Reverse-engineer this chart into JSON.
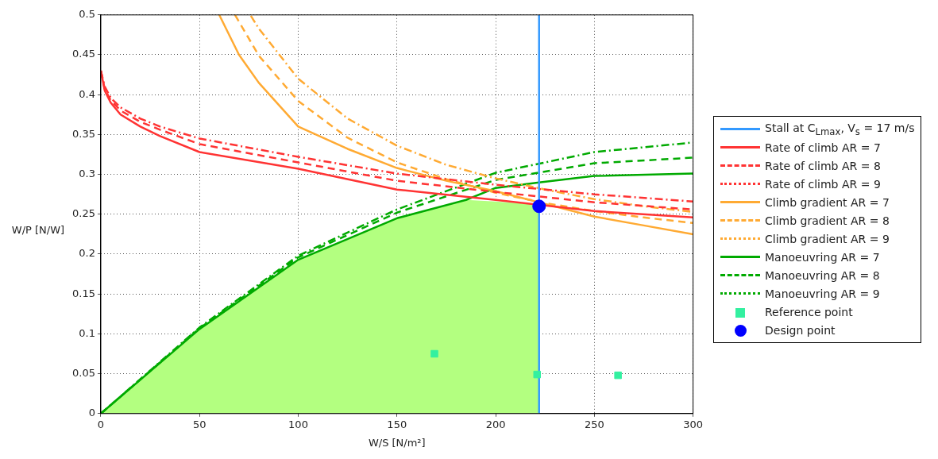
{
  "chart_data": {
    "type": "line",
    "xlabel": "W/S [N/m²]",
    "ylabel": "W/P [N/W]",
    "xlim": [
      0,
      300
    ],
    "ylim": [
      0,
      0.5
    ],
    "xticks": [
      0,
      50,
      100,
      150,
      200,
      250,
      300
    ],
    "yticks": [
      0,
      0.05,
      0.1,
      0.15,
      0.2,
      0.25,
      0.3,
      0.35,
      0.4,
      0.45,
      0.5
    ],
    "grid": true,
    "legend": "right",
    "marker": "none",
    "series": [
      {
        "type": "area",
        "color": "#b3ff80",
        "x": [
          0,
          50,
          100,
          150,
          185,
          200,
          222
        ],
        "values": [
          0,
          0.106,
          0.193,
          0.245,
          0.268,
          0.266,
          0.262
        ]
      },
      {
        "name": "Stall at C$_{Lmax}$, V$_{s}$ = 17 m/s",
        "color": "#3399ff",
        "line_style": "solid",
        "x": [
          222,
          222
        ],
        "values": [
          0,
          0.5
        ]
      },
      {
        "name": "Rate of climb AR = 7",
        "color": "#ff3333",
        "line_style": "solid",
        "x": [
          0,
          2,
          5,
          10,
          20,
          30,
          50,
          100,
          150,
          200,
          250,
          300
        ],
        "values": [
          0.43,
          0.405,
          0.39,
          0.375,
          0.36,
          0.348,
          0.328,
          0.307,
          0.281,
          0.268,
          0.254,
          0.246
        ]
      },
      {
        "name": "Rate of climb AR = 8",
        "color": "#ff3333",
        "line_style": "dashed",
        "x": [
          0,
          2,
          5,
          10,
          20,
          30,
          50,
          100,
          150,
          200,
          250,
          300
        ],
        "values": [
          0.43,
          0.407,
          0.393,
          0.38,
          0.366,
          0.356,
          0.338,
          0.315,
          0.292,
          0.278,
          0.265,
          0.256
        ]
      },
      {
        "name": "Rate of climb AR = 9",
        "color": "#ff3333",
        "line_style": "dotted",
        "x": [
          0,
          2,
          5,
          10,
          20,
          30,
          50,
          100,
          150,
          200,
          250,
          300
        ],
        "values": [
          0.43,
          0.41,
          0.396,
          0.384,
          0.37,
          0.36,
          0.345,
          0.322,
          0.301,
          0.287,
          0.275,
          0.266
        ]
      },
      {
        "name": "Climb gradient AR = 7",
        "color": "#ffaa33",
        "line_style": "solid",
        "x": [
          60,
          70,
          80,
          100,
          125,
          150,
          175,
          200,
          250,
          275,
          300
        ],
        "values": [
          0.5,
          0.45,
          0.415,
          0.36,
          0.332,
          0.308,
          0.292,
          0.279,
          0.247,
          0.236,
          0.225
        ]
      },
      {
        "name": "Climb gradient AR = 8",
        "color": "#ffaa33",
        "line_style": "dashed",
        "x": [
          68,
          80,
          100,
          125,
          150,
          175,
          200,
          225,
          250,
          275,
          300
        ],
        "values": [
          0.5,
          0.449,
          0.392,
          0.346,
          0.315,
          0.294,
          0.277,
          0.264,
          0.254,
          0.246,
          0.239
        ]
      },
      {
        "name": "Climb gradient AR = 9",
        "color": "#ffaa33",
        "line_style": "dotted",
        "x": [
          76,
          80,
          100,
          125,
          150,
          175,
          200,
          225,
          250,
          275,
          300
        ],
        "values": [
          0.499,
          0.483,
          0.42,
          0.37,
          0.336,
          0.312,
          0.295,
          0.281,
          0.269,
          0.26,
          0.253
        ]
      },
      {
        "name": "Manoeuvring AR = 7",
        "color": "#00aa00",
        "line_style": "solid",
        "x": [
          0,
          50,
          100,
          150,
          185,
          200,
          222,
          250,
          300
        ],
        "values": [
          0,
          0.106,
          0.193,
          0.245,
          0.268,
          0.283,
          0.29,
          0.298,
          0.301
        ]
      },
      {
        "name": "Manoeuvring AR = 8",
        "color": "#00aa00",
        "line_style": "dashed",
        "x": [
          0,
          50,
          100,
          150,
          200,
          250,
          300
        ],
        "values": [
          0,
          0.107,
          0.196,
          0.252,
          0.293,
          0.314,
          0.321
        ]
      },
      {
        "name": "Manoeuvring AR = 9",
        "color": "#00aa00",
        "line_style": "dotted",
        "x": [
          0,
          50,
          100,
          150,
          200,
          250,
          300
        ],
        "values": [
          0,
          0.108,
          0.198,
          0.256,
          0.302,
          0.328,
          0.34
        ]
      },
      {
        "name": "Reference point",
        "type": "scatter",
        "marker": "square",
        "color": "#33f0a0",
        "x": [
          169,
          221,
          262
        ],
        "values": [
          0.075,
          0.049,
          0.048
        ]
      },
      {
        "name": "Design point",
        "type": "scatter",
        "marker": "circle",
        "color": "#0000ff",
        "x": [
          222
        ],
        "values": [
          0.26
        ]
      }
    ]
  }
}
